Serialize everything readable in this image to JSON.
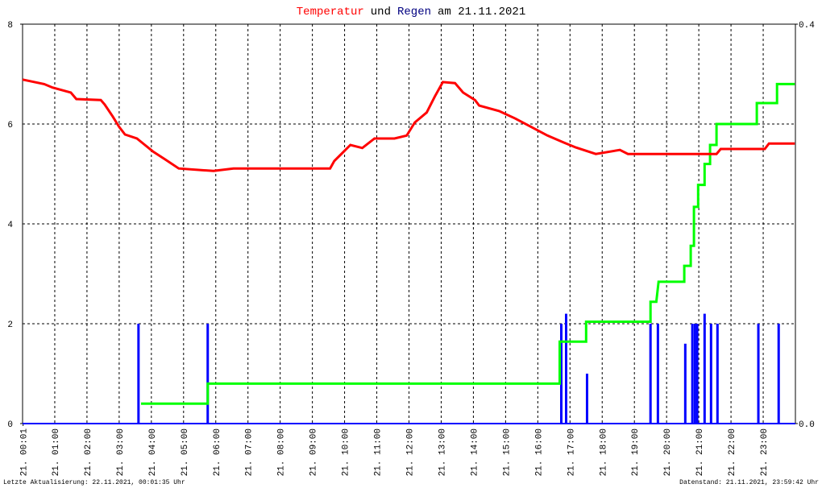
{
  "chart_data": {
    "type": "combo",
    "title_parts": [
      {
        "text": "Temperatur",
        "color": "#ff0000"
      },
      {
        "text": "und",
        "color": "#000000"
      },
      {
        "text": "Regen",
        "color": "#000080"
      },
      {
        "text": "am 21.11.2021",
        "color": "#000000"
      }
    ],
    "xlim": [
      0,
      24
    ],
    "xticks": [
      {
        "value": 0.0167,
        "label": "21. 00:01"
      },
      {
        "value": 1,
        "label": "21. 01:00"
      },
      {
        "value": 2,
        "label": "21. 02:00"
      },
      {
        "value": 3,
        "label": "21. 03:00"
      },
      {
        "value": 4,
        "label": "21. 04:00"
      },
      {
        "value": 5,
        "label": "21. 05:00"
      },
      {
        "value": 6,
        "label": "21. 06:00"
      },
      {
        "value": 7,
        "label": "21. 07:00"
      },
      {
        "value": 8,
        "label": "21. 08:00"
      },
      {
        "value": 9,
        "label": "21. 09:00"
      },
      {
        "value": 10,
        "label": "21. 10:00"
      },
      {
        "value": 11,
        "label": "21. 11:00"
      },
      {
        "value": 12,
        "label": "21. 12:00"
      },
      {
        "value": 13,
        "label": "21. 13:00"
      },
      {
        "value": 14,
        "label": "21. 14:00"
      },
      {
        "value": 15,
        "label": "21. 15:00"
      },
      {
        "value": 16,
        "label": "21. 16:00"
      },
      {
        "value": 17,
        "label": "21. 17:00"
      },
      {
        "value": 18,
        "label": "21. 18:00"
      },
      {
        "value": 19,
        "label": "21. 19:00"
      },
      {
        "value": 20,
        "label": "21. 20:00"
      },
      {
        "value": 21,
        "label": "21. 21:00"
      },
      {
        "value": 22,
        "label": "21. 22:00"
      },
      {
        "value": 23,
        "label": "21. 23:00"
      }
    ],
    "ylim": [
      0,
      8
    ],
    "yticks": [
      0,
      2,
      4,
      6,
      8
    ],
    "y2lim": [
      0,
      0.4
    ],
    "y2ticks": [
      {
        "value": 0,
        "label": "0.0"
      },
      0.4
    ],
    "grid": true,
    "series": [
      {
        "type": "line",
        "color": "#ff0000",
        "x": [
          0,
          0.67,
          0.93,
          1.5,
          1.67,
          2.43,
          2.55,
          2.8,
          3.0,
          3.18,
          3.55,
          3.8,
          4.05,
          4.43,
          4.85,
          5.93,
          6.55,
          9.55,
          9.68,
          9.93,
          10.18,
          10.55,
          10.93,
          11.55,
          11.93,
          12.18,
          12.55,
          12.8,
          13.05,
          13.43,
          13.68,
          14.05,
          14.18,
          14.8,
          15.3,
          15.8,
          16.3,
          16.8,
          17.18,
          17.8,
          18.55,
          18.8,
          21.55,
          21.68,
          23.05,
          23.18,
          23.98
        ],
        "values": [
          6.89,
          6.8,
          6.73,
          6.63,
          6.5,
          6.48,
          6.39,
          6.15,
          5.94,
          5.79,
          5.71,
          5.58,
          5.45,
          5.29,
          5.11,
          5.06,
          5.11,
          5.11,
          5.26,
          5.42,
          5.58,
          5.52,
          5.71,
          5.71,
          5.77,
          6.03,
          6.23,
          6.55,
          6.84,
          6.82,
          6.63,
          6.48,
          6.37,
          6.26,
          6.11,
          5.94,
          5.77,
          5.63,
          5.53,
          5.4,
          5.48,
          5.4,
          5.4,
          5.5,
          5.5,
          5.61,
          5.61
        ]
      },
      {
        "type": "line",
        "axis": "y2",
        "color": "#00ff00",
        "x": [
          3.68,
          5.75,
          5.75,
          16.68,
          16.68,
          16.93,
          17.5,
          17.5,
          19.5,
          19.5,
          19.68,
          19.75,
          20.55,
          20.55,
          20.75,
          20.75,
          20.85,
          20.85,
          20.98,
          20.98,
          21.18,
          21.18,
          21.35,
          21.35,
          21.55,
          21.55,
          22.8,
          22.8,
          23.43,
          23.43,
          23.98
        ],
        "values": [
          0.02,
          0.02,
          0.04,
          0.04,
          0.082,
          0.082,
          0.082,
          0.102,
          0.102,
          0.122,
          0.122,
          0.142,
          0.142,
          0.158,
          0.158,
          0.178,
          0.178,
          0.217,
          0.217,
          0.239,
          0.239,
          0.26,
          0.26,
          0.279,
          0.279,
          0.3,
          0.3,
          0.321,
          0.321,
          0.34,
          0.34
        ]
      },
      {
        "type": "bar",
        "axis": "y2",
        "color": "#0000ff",
        "x": [
          3.6,
          5.75,
          16.73,
          16.88,
          17.53,
          19.5,
          19.73,
          20.58,
          20.8,
          20.88,
          20.95,
          21.18,
          21.38,
          21.58,
          22.85,
          23.48
        ],
        "values": [
          0.1,
          0.1,
          0.1,
          0.11,
          0.05,
          0.1,
          0.1,
          0.08,
          0.1,
          0.1,
          0.1,
          0.11,
          0.1,
          0.1,
          0.1,
          0.1
        ]
      }
    ],
    "footer_left": "Letzte Aktualisierung: 22.11.2021, 00:01:35 Uhr",
    "footer_right": "Datenstand: 21.11.2021, 23:59:42 Uhr"
  }
}
